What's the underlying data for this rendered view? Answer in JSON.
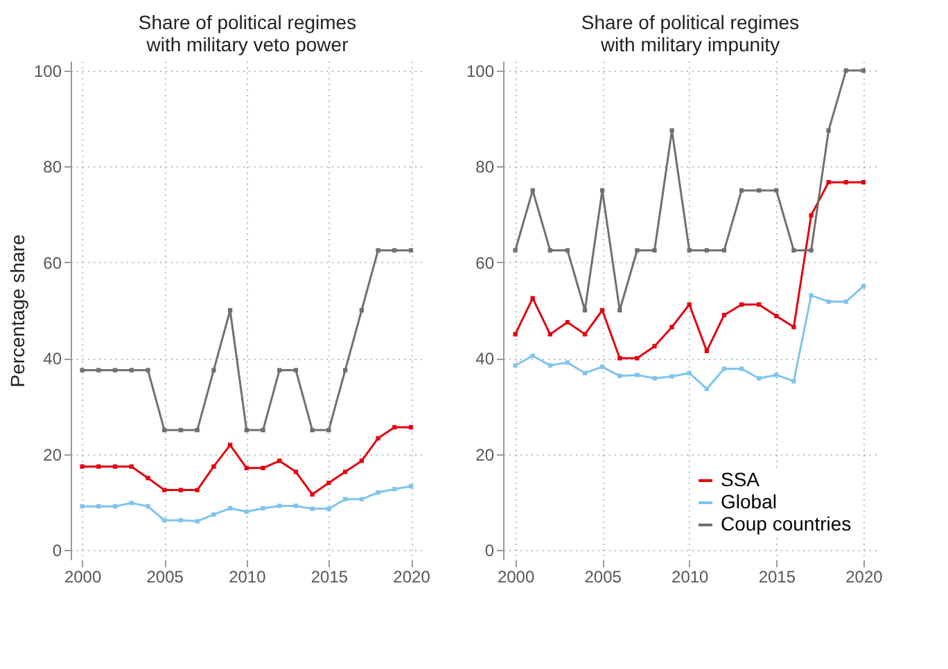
{
  "chart_data": [
    {
      "type": "line",
      "title": "Share of political regimes\nwith military veto power",
      "ylabel": "Percentage share",
      "x": [
        2000,
        2001,
        2002,
        2003,
        2004,
        2005,
        2006,
        2007,
        2008,
        2009,
        2010,
        2011,
        2012,
        2013,
        2014,
        2015,
        2016,
        2017,
        2018,
        2019,
        2020
      ],
      "xlim": [
        1999.3,
        2020.8
      ],
      "xticks": [
        2000,
        2005,
        2010,
        2015,
        2020
      ],
      "ylim": [
        -2,
        102
      ],
      "yticks": [
        0,
        20,
        40,
        60,
        80,
        100
      ],
      "grid": true,
      "legend": false,
      "marker": "square",
      "line_style": "solid",
      "series": [
        {
          "color": "#e3000f",
          "values": [
            17.4,
            17.4,
            17.4,
            17.4,
            15,
            12.5,
            12.5,
            12.5,
            17.4,
            21.9,
            17.1,
            17.1,
            18.6,
            16.3,
            11.6,
            14,
            16.3,
            18.6,
            23.3,
            25.6,
            25.6
          ]
        },
        {
          "color": "#7fc4ed",
          "values": [
            9.1,
            9.1,
            9.1,
            9.8,
            9.1,
            6.2,
            6.2,
            6,
            7.4,
            8.7,
            8,
            8.7,
            9.2,
            9.2,
            8.6,
            8.6,
            10.6,
            10.6,
            12,
            12.7,
            13.3
          ]
        },
        {
          "color": "#707070",
          "values": [
            37.5,
            37.5,
            37.5,
            37.5,
            37.5,
            25,
            25,
            25,
            37.5,
            50,
            25,
            25,
            37.5,
            37.5,
            25,
            25,
            37.5,
            50,
            62.5,
            62.5,
            62.5
          ]
        }
      ]
    },
    {
      "type": "line",
      "title": "Share of political regimes\nwith military impunity",
      "x": [
        2000,
        2001,
        2002,
        2003,
        2004,
        2005,
        2006,
        2007,
        2008,
        2009,
        2010,
        2011,
        2012,
        2013,
        2014,
        2015,
        2016,
        2017,
        2018,
        2019,
        2020
      ],
      "xlim": [
        1999.3,
        2020.8
      ],
      "xticks": [
        2000,
        2005,
        2010,
        2015,
        2020
      ],
      "ylim": [
        -2,
        102
      ],
      "yticks": [
        0,
        20,
        40,
        60,
        80,
        100
      ],
      "grid": true,
      "legend": "bottom right",
      "marker": "square",
      "line_style": "solid",
      "series": [
        {
          "name": "SSA",
          "color": "#e3000f",
          "values": [
            45,
            52.5,
            45,
            47.5,
            45,
            50,
            40,
            40,
            42.5,
            46.5,
            51.2,
            41.5,
            49,
            51.2,
            51.2,
            48.8,
            46.5,
            69.8,
            76.7,
            76.7,
            76.7
          ]
        },
        {
          "name": "Global",
          "color": "#7fc4ed",
          "values": [
            38.5,
            40.5,
            38.5,
            39.1,
            36.9,
            38.2,
            36.3,
            36.5,
            35.8,
            36.2,
            36.9,
            33.6,
            37.8,
            37.8,
            35.8,
            36.5,
            35.2,
            53.1,
            51.8,
            51.8,
            55
          ]
        },
        {
          "name": "Coup countries",
          "color": "#707070",
          "values": [
            62.5,
            75,
            62.5,
            62.5,
            50,
            75,
            50,
            62.5,
            62.5,
            87.5,
            62.5,
            62.5,
            62.5,
            75,
            75,
            75,
            62.5,
            62.5,
            87.5,
            100,
            100
          ]
        }
      ]
    }
  ]
}
